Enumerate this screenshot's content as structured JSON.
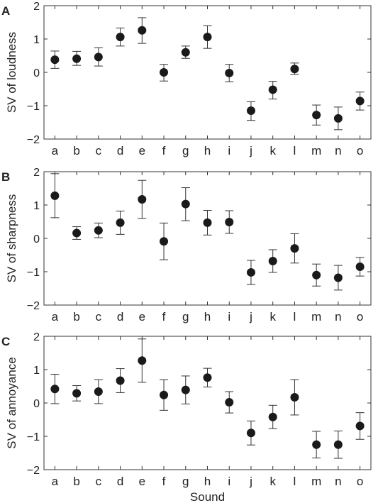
{
  "chart_data": [
    {
      "panel_letter": "A",
      "type": "scatter",
      "ylabel": "SV of loudness",
      "xlabel": "",
      "ylim": [
        -2,
        2
      ],
      "yticks": [
        -2,
        -1,
        0,
        1,
        2
      ],
      "ytick_labels": [
        "−2",
        "−1",
        "0",
        "1",
        "2"
      ],
      "categories": [
        "a",
        "b",
        "c",
        "d",
        "e",
        "f",
        "g",
        "h",
        "i",
        "j",
        "k",
        "l",
        "m",
        "n",
        "o"
      ],
      "values": [
        0.38,
        0.41,
        0.46,
        1.06,
        1.26,
        0.0,
        0.6,
        1.06,
        -0.02,
        -1.15,
        -0.52,
        0.1,
        -1.28,
        -1.38,
        -0.86
      ],
      "err_low": [
        0.12,
        0.21,
        0.19,
        0.79,
        0.87,
        -0.26,
        0.42,
        0.72,
        -0.28,
        -1.44,
        -0.8,
        -0.06,
        -1.58,
        -1.72,
        -1.13
      ],
      "err_high": [
        0.64,
        0.63,
        0.74,
        1.33,
        1.64,
        0.24,
        0.79,
        1.4,
        0.24,
        -0.88,
        -0.27,
        0.28,
        -0.98,
        -1.04,
        -0.59
      ],
      "grid": false
    },
    {
      "panel_letter": "B",
      "type": "scatter",
      "ylabel": "SV of sharpness",
      "xlabel": "",
      "ylim": [
        -2,
        2
      ],
      "yticks": [
        -2,
        -1,
        0,
        1,
        2
      ],
      "ytick_labels": [
        "−2",
        "−1",
        "0",
        "1",
        "2"
      ],
      "categories": [
        "a",
        "b",
        "c",
        "d",
        "e",
        "f",
        "g",
        "h",
        "i",
        "j",
        "k",
        "l",
        "m",
        "n",
        "o"
      ],
      "values": [
        1.28,
        0.16,
        0.24,
        0.47,
        1.17,
        -0.09,
        1.03,
        0.47,
        0.49,
        -1.02,
        -0.68,
        -0.3,
        -1.1,
        -1.18,
        -0.85
      ],
      "err_low": [
        0.62,
        -0.03,
        0.02,
        0.12,
        0.6,
        -0.64,
        0.53,
        0.1,
        0.15,
        -1.38,
        -1.02,
        -0.74,
        -1.43,
        -1.55,
        -1.13
      ],
      "err_high": [
        1.94,
        0.35,
        0.46,
        0.82,
        1.74,
        0.46,
        1.52,
        0.84,
        0.83,
        -0.66,
        -0.34,
        0.14,
        -0.77,
        -0.81,
        -0.57
      ],
      "grid": false
    },
    {
      "panel_letter": "C",
      "type": "scatter",
      "ylabel": "SV of annoyance",
      "xlabel": "Sound",
      "ylim": [
        -2,
        2
      ],
      "yticks": [
        -2,
        -1,
        0,
        1,
        2
      ],
      "ytick_labels": [
        "−2",
        "−1",
        "0",
        "1",
        "2"
      ],
      "categories": [
        "a",
        "b",
        "c",
        "d",
        "e",
        "f",
        "g",
        "h",
        "i",
        "j",
        "k",
        "l",
        "m",
        "n",
        "o"
      ],
      "values": [
        0.42,
        0.29,
        0.34,
        0.67,
        1.27,
        0.24,
        0.39,
        0.76,
        0.02,
        -0.9,
        -0.42,
        0.17,
        -1.25,
        -1.25,
        -0.69
      ],
      "err_low": [
        -0.02,
        0.06,
        -0.02,
        0.31,
        0.62,
        -0.22,
        -0.03,
        0.48,
        -0.3,
        -1.26,
        -0.77,
        -0.36,
        -1.65,
        -1.66,
        -1.09
      ],
      "err_high": [
        0.86,
        0.52,
        0.7,
        1.03,
        1.92,
        0.7,
        0.81,
        1.04,
        0.34,
        -0.54,
        -0.07,
        0.7,
        -0.85,
        -0.84,
        -0.29
      ],
      "grid": false
    }
  ]
}
